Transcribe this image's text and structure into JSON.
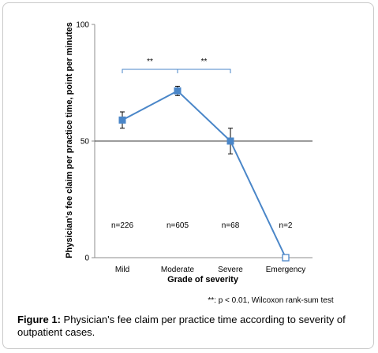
{
  "chart_data": {
    "type": "line",
    "categories": [
      "Mild",
      "Moderate",
      "Severe",
      "Emergency"
    ],
    "series": [
      {
        "values": [
          59,
          71.5,
          50,
          0
        ],
        "error": [
          3.5,
          2,
          5.5,
          0
        ]
      }
    ],
    "ylabel": "Physician's fee claim per practice time, point per minutes",
    "xlabel": "Grade of severity",
    "ylim": [
      0,
      100
    ],
    "yticks": [
      0,
      50,
      100
    ],
    "grid": "horizontal line at 50",
    "counts": [
      "n=226",
      "n=605",
      "n=68",
      "n=2"
    ],
    "significance": [
      {
        "from": "Mild",
        "to": "Moderate",
        "label": "**"
      },
      {
        "from": "Moderate",
        "to": "Severe",
        "label": "**"
      }
    ],
    "note": "**: p < 0.01, Wilcoxon rank-sum test",
    "colors": {
      "line": "#4a86c8",
      "marker": "#4a86c8",
      "open_marker_fill": "#ffffff"
    }
  },
  "caption": {
    "label": "Figure 1:",
    "text": " Physician's fee claim per practice time according to severity of outpatient cases."
  }
}
